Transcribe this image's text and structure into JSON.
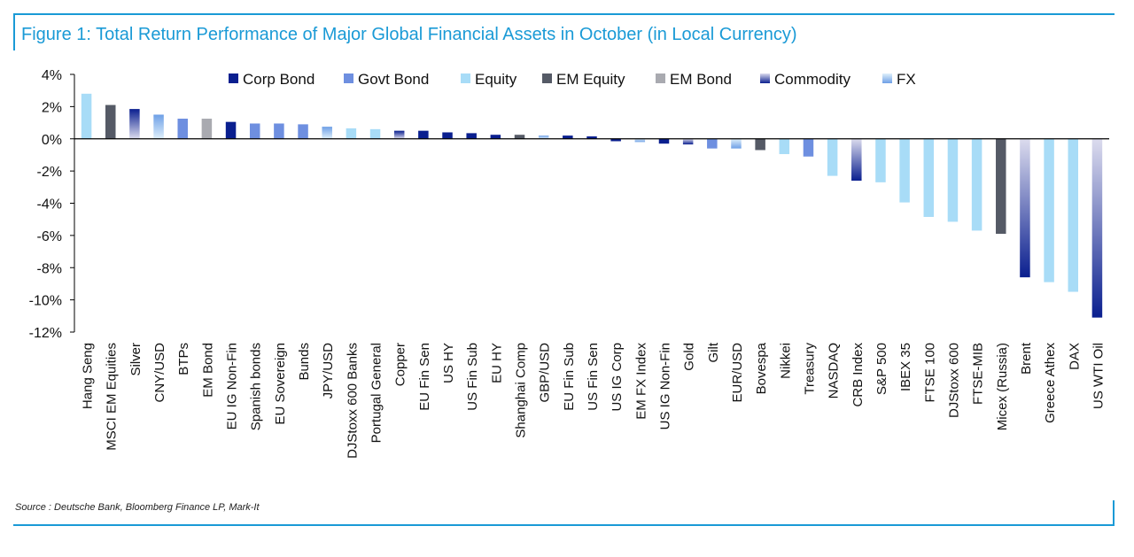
{
  "title": "Figure 1: Total Return Performance of Major Global Financial Assets in October (in Local Currency)",
  "source": "Source : Deutsche Bank, Bloomberg Finance LP, Mark-It",
  "chart_data": {
    "type": "bar",
    "title": "Figure 1: Total Return Performance of Major Global Financial Assets in October (in Local Currency)",
    "ylim": [
      -12,
      4
    ],
    "yticks": [
      4,
      2,
      0,
      -2,
      -4,
      -6,
      -8,
      -10,
      -12
    ],
    "ytick_labels": [
      "4%",
      "2%",
      "0%",
      "-2%",
      "-4%",
      "-6%",
      "-8%",
      "-10%",
      "-12%"
    ],
    "grid": false,
    "legend_position": "top",
    "legend": [
      {
        "name": "Corp Bond",
        "style": "Corp Bond"
      },
      {
        "name": "Govt Bond",
        "style": "Govt Bond"
      },
      {
        "name": "Equity",
        "style": "Equity"
      },
      {
        "name": "EM Equity",
        "style": "EM Equity"
      },
      {
        "name": "EM Bond",
        "style": "EM Bond"
      },
      {
        "name": "Commodity",
        "style": "Commodity"
      },
      {
        "name": "FX",
        "style": "FX"
      }
    ],
    "colors": {
      "Corp Bond": "#0a1f8f",
      "Govt Bond": "#6e8fe0",
      "Equity": "#a8dcf7",
      "EM Equity": "#555a66",
      "EM Bond": "#a9aab0",
      "Commodity_light": "#dcdcee",
      "Commodity_dark": "#0a1f8f",
      "FX_light": "#dff0fb",
      "FX_dark": "#6e9fe6"
    },
    "categories": [
      "Hang Seng",
      "MSCI EM Equities",
      "Silver",
      "CNY/USD",
      "BTPs",
      "EM Bond",
      "EU IG Non-Fin",
      "Spanish bonds",
      "EU Sovereign",
      "Bunds",
      "JPY/USD",
      "DJStoxx 600 Banks",
      "Portugal General",
      "Copper",
      "EU Fin Sen",
      "US HY",
      "US Fin Sub",
      "EU HY",
      "Shanghai Comp",
      "GBP/USD",
      "EU Fin Sub",
      "US Fin Sen",
      "US IG Corp",
      "EM FX Index",
      "US IG Non-Fin",
      "Gold",
      "Gilt",
      "EUR/USD",
      "Bovespa",
      "Nikkei",
      "Treasury",
      "NASDAQ",
      "CRB Index",
      "S&P 500",
      "IBEX 35",
      "FTSE 100",
      "DJStoxx 600",
      "FTSE-MIB",
      "Micex (Russia)",
      "Brent",
      "Greece Athex",
      "DAX",
      "US WTI Oil"
    ],
    "values": [
      2.8,
      2.1,
      1.85,
      1.5,
      1.25,
      1.25,
      1.05,
      0.95,
      0.95,
      0.9,
      0.75,
      0.65,
      0.6,
      0.5,
      0.5,
      0.4,
      0.35,
      0.25,
      0.25,
      0.2,
      0.2,
      0.15,
      -0.15,
      -0.2,
      -0.3,
      -0.35,
      -0.6,
      -0.6,
      -0.7,
      -0.95,
      -1.1,
      -2.3,
      -2.6,
      -2.7,
      -3.95,
      -4.85,
      -5.15,
      -5.7,
      -5.9,
      -8.6,
      -8.9,
      -9.5,
      -11.1
    ],
    "asset_classes": [
      "Equity",
      "EM Equity",
      "Commodity",
      "FX",
      "Govt Bond",
      "EM Bond",
      "Corp Bond",
      "Govt Bond",
      "Govt Bond",
      "Govt Bond",
      "FX",
      "Equity",
      "Equity",
      "Commodity",
      "Corp Bond",
      "Corp Bond",
      "Corp Bond",
      "Corp Bond",
      "EM Equity",
      "FX",
      "Corp Bond",
      "Corp Bond",
      "Corp Bond",
      "FX",
      "Corp Bond",
      "Commodity",
      "Govt Bond",
      "FX",
      "EM Equity",
      "Equity",
      "Govt Bond",
      "Equity",
      "Commodity",
      "Equity",
      "Equity",
      "Equity",
      "Equity",
      "Equity",
      "EM Equity",
      "Commodity",
      "Equity",
      "Equity",
      "Commodity"
    ]
  }
}
